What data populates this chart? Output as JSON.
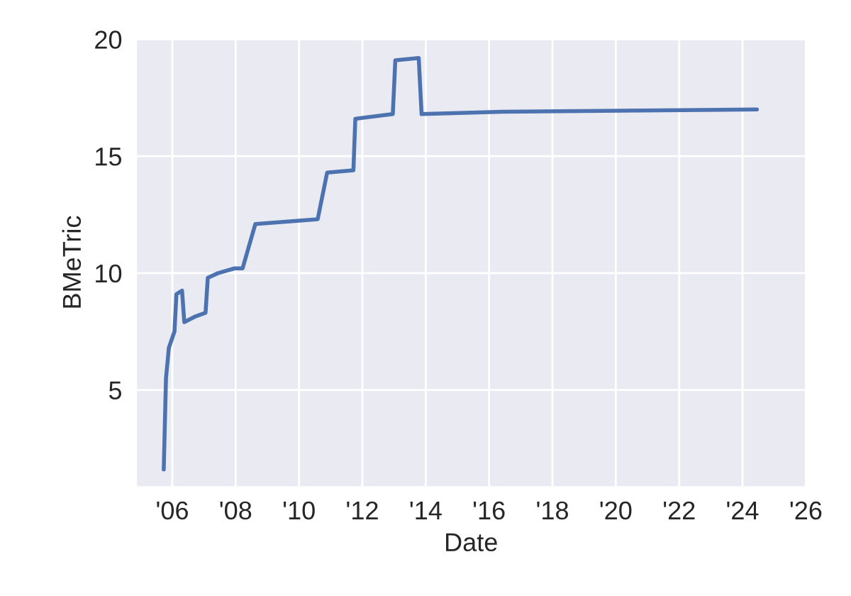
{
  "chart_data": {
    "type": "line",
    "xlabel": "Date",
    "ylabel": "BMeTric",
    "x": [
      "2005-09-24",
      "2005-10-20",
      "2005-11-22",
      "2006-01-26",
      "2006-02-17",
      "2006-04-23",
      "2006-05-19",
      "2006-09-27",
      "2007-01-19",
      "2007-02-14",
      "2007-06-14",
      "2007-12-20",
      "2008-03-21",
      "2008-08-15",
      "2010-08-04",
      "2010-11-21",
      "2011-09-20",
      "2011-10-12",
      "2012-12-17",
      "2013-01-15",
      "2013-10-12",
      "2013-11-14",
      "2016-06-01",
      "2024-06-15"
    ],
    "series": [
      {
        "color": "#4c72b0",
        "values": [
          1.6,
          5.5,
          6.8,
          7.5,
          9.1,
          9.25,
          7.9,
          8.15,
          8.3,
          9.8,
          10.0,
          10.2,
          10.2,
          12.1,
          12.3,
          14.3,
          14.4,
          16.6,
          16.8,
          19.1,
          19.2,
          16.8,
          16.9,
          17.0
        ]
      }
    ],
    "xlim": [
      "2004-11-10",
      "2026-01-01"
    ],
    "ylim": [
      0.85,
      20.05
    ],
    "xticks": [
      {
        "value": "2006-01-01",
        "label": "'06"
      },
      {
        "value": "2008-01-01",
        "label": "'08"
      },
      {
        "value": "2010-01-01",
        "label": "'10"
      },
      {
        "value": "2012-01-01",
        "label": "'12"
      },
      {
        "value": "2014-01-01",
        "label": "'14"
      },
      {
        "value": "2016-01-01",
        "label": "'16"
      },
      {
        "value": "2018-01-01",
        "label": "'18"
      },
      {
        "value": "2020-01-01",
        "label": "'20"
      },
      {
        "value": "2022-01-01",
        "label": "'22"
      },
      {
        "value": "2024-01-01",
        "label": "'24"
      },
      {
        "value": "2026-01-01",
        "label": "'26"
      }
    ],
    "yticks": [
      5,
      10,
      15,
      20
    ],
    "grid": true,
    "line_style": "solid",
    "marker": "none"
  }
}
